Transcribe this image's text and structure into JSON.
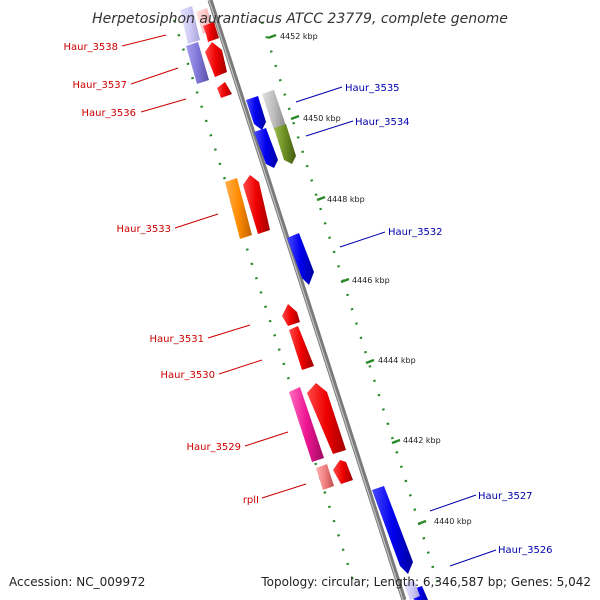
{
  "title": "Herpetosiphon aurantiacus ATCC 23779, complete genome",
  "footer": {
    "accession": "Accession: NC_009972",
    "topology": "Topology: circular; Length: 6,346,587 bp; Genes: 5,042"
  },
  "ticks": [
    "4452 kbp",
    "4450 kbp",
    "4448 kbp",
    "4446 kbp",
    "4444 kbp",
    "4442 kbp",
    "4440 kbp"
  ],
  "genes_left": [
    "Haur_3538",
    "Haur_3537",
    "Haur_3536",
    "Haur_3533",
    "Haur_3531",
    "Haur_3530",
    "Haur_3529",
    "rplI"
  ],
  "genes_right": [
    "Haur_3535",
    "Haur_3534",
    "Haur_3532",
    "Haur_3527",
    "Haur_3526"
  ],
  "colors": {
    "reverse_label": "#cc0000",
    "forward_label": "#0000aa",
    "backbone": "#808080",
    "tick_dots": "#2a8a2a"
  }
}
